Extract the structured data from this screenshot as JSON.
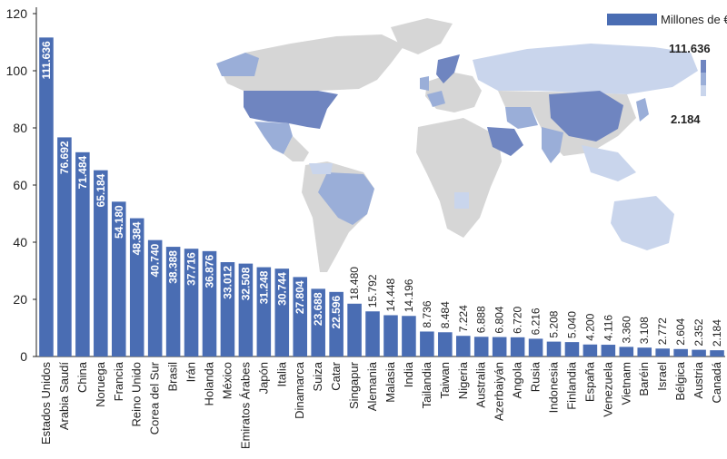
{
  "chart_data": {
    "type": "bar",
    "title": "",
    "xlabel": "",
    "ylabel": "",
    "ylim": [
      0,
      120
    ],
    "yticks": [
      0,
      20,
      40,
      60,
      80,
      100,
      120
    ],
    "grid": false,
    "legend": {
      "label": "Millones de €",
      "placement": "top-right"
    },
    "color_scale": {
      "max_label": "111.636",
      "min_label": "2.184"
    },
    "colors": {
      "bar": "#4a6db3",
      "map_land": "#d6d6d6",
      "map_high": "#6f85c0",
      "map_mid": "#9aaed8",
      "map_low": "#c9d5ec"
    },
    "categories": [
      "Estados Unidos",
      "Arabia Saudí",
      "China",
      "Noruega",
      "Francia",
      "Reino Unido",
      "Corea del Sur",
      "Brasil",
      "Irán",
      "Holanda",
      "México",
      "Emiratos Árabes",
      "Japón",
      "Italia",
      "Dinamarca",
      "Suiza",
      "Catar",
      "Singapur",
      "Alemania",
      "Malasia",
      "India",
      "Tailandia",
      "Taiwan",
      "Nigeria",
      "Australia",
      "Azerbaiyán",
      "Angola",
      "Rusia",
      "Indonesia",
      "Finlandia",
      "España",
      "Venezuela",
      "Vietnam",
      "Baréin",
      "Israel",
      "Bélgica",
      "Austria",
      "Canadá"
    ],
    "values": [
      111.636,
      76.692,
      71.484,
      65.184,
      54.18,
      48.384,
      40.74,
      38.388,
      37.716,
      36.876,
      33.012,
      32.508,
      31.248,
      30.744,
      27.804,
      23.688,
      22.596,
      18.48,
      15.792,
      14.448,
      14.196,
      8.736,
      8.484,
      7.224,
      6.888,
      6.804,
      6.72,
      6.216,
      5.208,
      5.04,
      4.2,
      4.116,
      3.36,
      3.108,
      2.772,
      2.604,
      2.352,
      2.184
    ],
    "value_labels": [
      "111.636",
      "76.692",
      "71.484",
      "65.184",
      "54.180",
      "48.384",
      "40.740",
      "38.388",
      "37.716",
      "36.876",
      "33.012",
      "32.508",
      "31.248",
      "30.744",
      "27.804",
      "23.688",
      "22.596",
      "18.480",
      "15.792",
      "14.448",
      "14.196",
      "8.736",
      "8.484",
      "7.224",
      "6.888",
      "6.804",
      "6.720",
      "6.216",
      "5.208",
      "5.040",
      "4.200",
      "4.116",
      "3.360",
      "3.108",
      "2.772",
      "2.604",
      "2.352",
      "2.184"
    ]
  }
}
